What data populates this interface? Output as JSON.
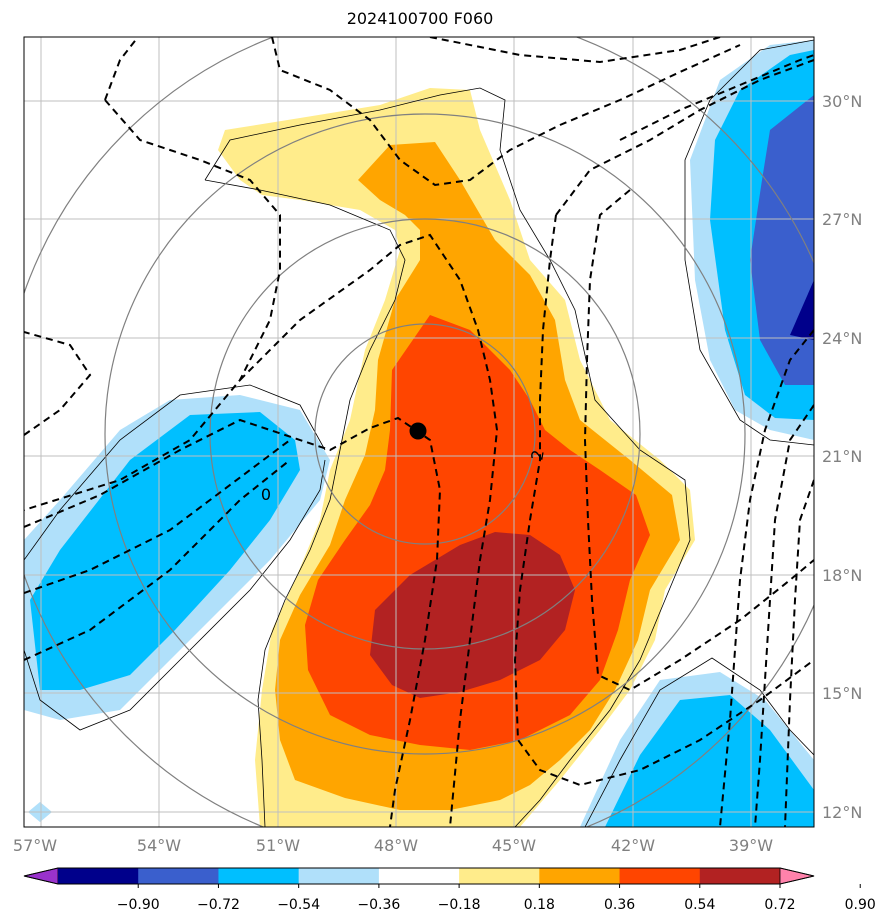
{
  "title": "2024100700 F060",
  "map": {
    "lon_labels": [
      "57°W",
      "54°W",
      "51°W",
      "48°W",
      "45°W",
      "42°W",
      "39°W"
    ],
    "lat_labels": [
      "30°N",
      "27°N",
      "24°N",
      "21°N",
      "18°N",
      "15°N",
      "12°N"
    ],
    "contour_labels": [
      "0",
      "2"
    ],
    "storm_center": {
      "lon": -47.5,
      "lat": 21.6
    }
  },
  "colorbar": {
    "tick_labels": [
      "−0.90",
      "−0.72",
      "−0.54",
      "−0.36",
      "−0.18",
      "0.18",
      "0.36",
      "0.54",
      "0.72",
      "0.90"
    ],
    "colors": [
      "#9932cc",
      "#00008b",
      "#3a5fcd",
      "#00bfff",
      "#b0e0fa",
      "#ffffff",
      "#ffec8b",
      "#ffa500",
      "#ff4500",
      "#b22222",
      "#ff82ab"
    ]
  }
}
